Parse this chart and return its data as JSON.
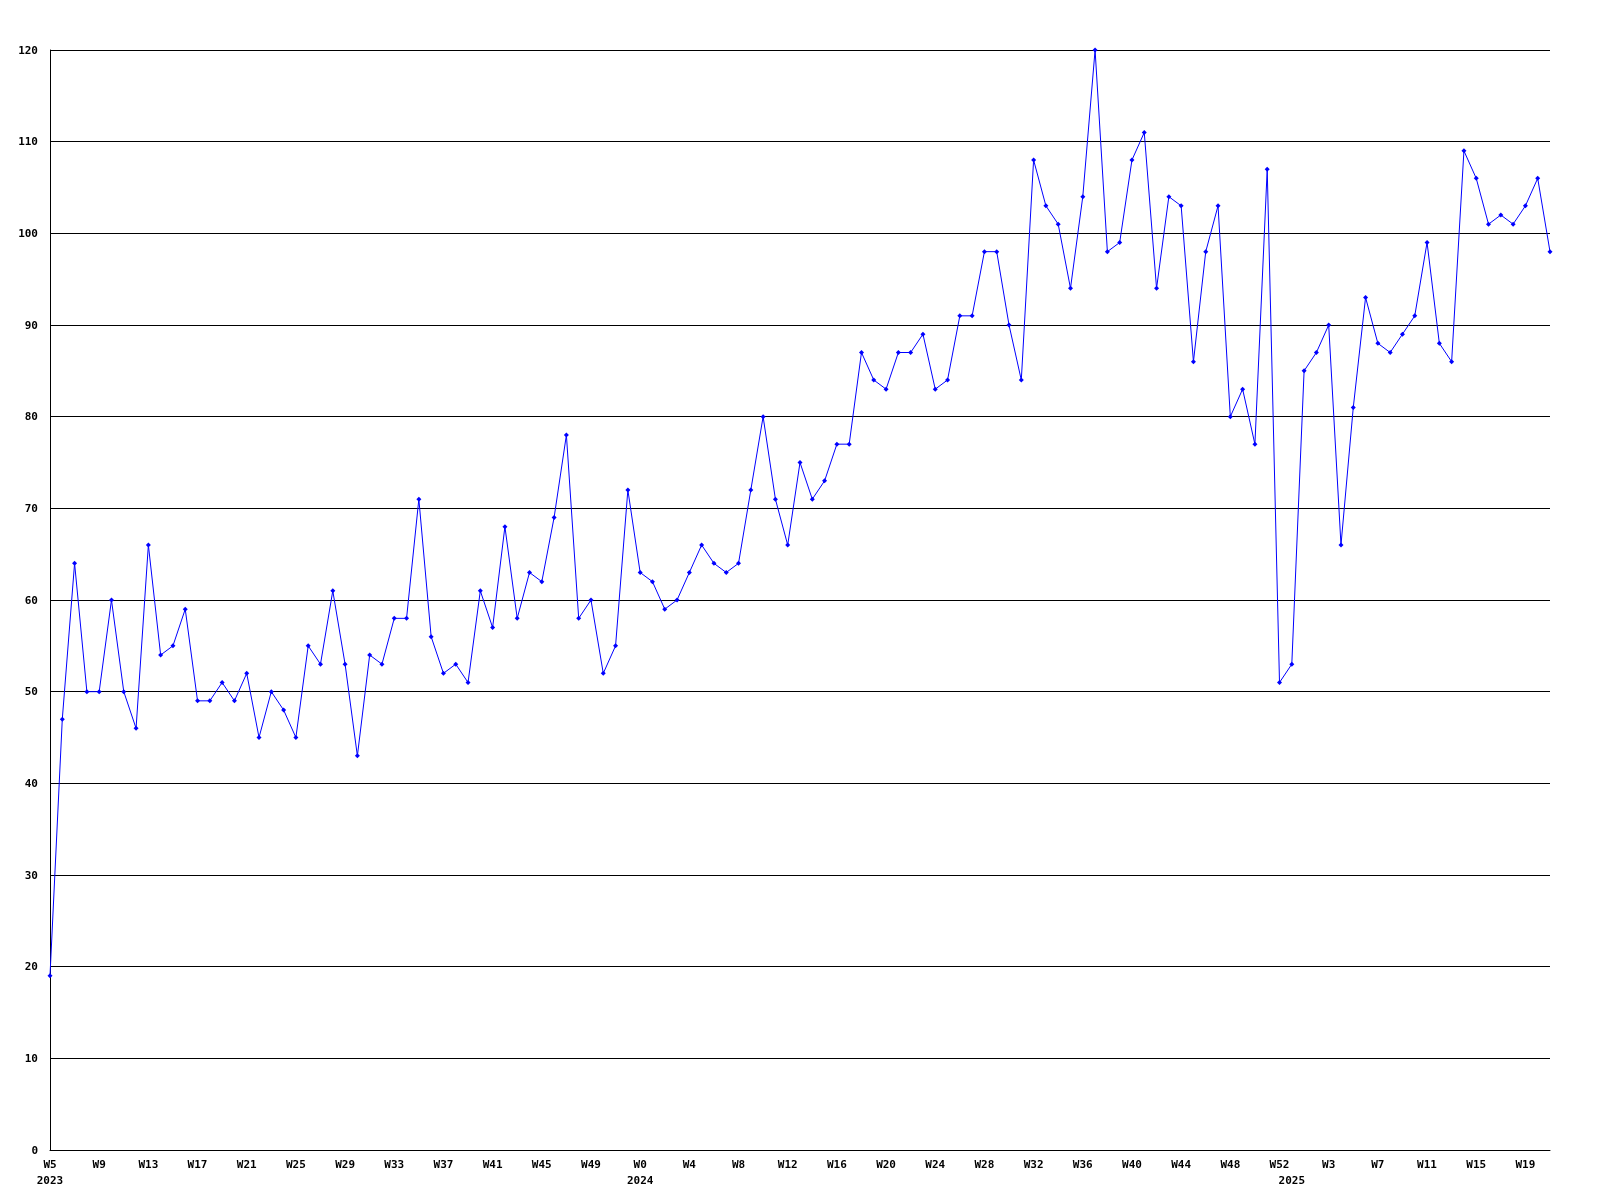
{
  "chart_data": {
    "type": "line",
    "categories": [
      "W5\n2023",
      null,
      null,
      null,
      "W9",
      null,
      null,
      null,
      "W13",
      null,
      null,
      null,
      "W17",
      null,
      null,
      null,
      "W21",
      null,
      null,
      null,
      "W25",
      null,
      null,
      null,
      "W29",
      null,
      null,
      null,
      "W33",
      null,
      null,
      null,
      "W37",
      null,
      null,
      null,
      "W41",
      null,
      null,
      null,
      "W45",
      null,
      null,
      null,
      "W49",
      null,
      null,
      null,
      "W0\n2024",
      null,
      null,
      null,
      "W4",
      null,
      null,
      null,
      "W8",
      null,
      null,
      null,
      "W12",
      null,
      null,
      null,
      "W16",
      null,
      null,
      null,
      "W20",
      null,
      null,
      null,
      "W24",
      null,
      null,
      null,
      "W28",
      null,
      null,
      null,
      "W32",
      null,
      null,
      null,
      "W36",
      null,
      null,
      null,
      "W40",
      null,
      null,
      null,
      "W44",
      null,
      null,
      null,
      "W48",
      null,
      null,
      null,
      "W52",
      "\n2025",
      null,
      null,
      "W3",
      null,
      null,
      null,
      "W7",
      null,
      null,
      null,
      "W11",
      null,
      null,
      null,
      "W15",
      null,
      null,
      null,
      "W19",
      null,
      null
    ],
    "series": [
      {
        "color": "#0000ff",
        "values": [
          19,
          47,
          64,
          50,
          50,
          60,
          50,
          46,
          66,
          54,
          55,
          59,
          49,
          49,
          51,
          49,
          52,
          45,
          50,
          48,
          45,
          55,
          53,
          61,
          53,
          43,
          54,
          53,
          58,
          58,
          71,
          56,
          52,
          53,
          51,
          61,
          57,
          68,
          58,
          63,
          62,
          69,
          78,
          58,
          60,
          52,
          55,
          72,
          63,
          62,
          59,
          60,
          63,
          66,
          64,
          63,
          64,
          72,
          80,
          71,
          66,
          75,
          71,
          73,
          77,
          77,
          87,
          84,
          83,
          87,
          87,
          89,
          83,
          84,
          91,
          91,
          98,
          98,
          90,
          84,
          108,
          103,
          101,
          94,
          104,
          120,
          98,
          99,
          108,
          111,
          94,
          104,
          103,
          86,
          98,
          103,
          80,
          83,
          77,
          107,
          51,
          53,
          85,
          87,
          90,
          66,
          81,
          93,
          88,
          87,
          89,
          91,
          99,
          88,
          86,
          109,
          106,
          101,
          102,
          101,
          103,
          106,
          98
        ]
      }
    ],
    "ylim": [
      0,
      120
    ],
    "yticks": [
      0,
      10,
      20,
      30,
      40,
      50,
      60,
      70,
      80,
      90,
      100,
      110,
      120
    ],
    "grid": "y",
    "marker": "diamond",
    "line_style": "solid"
  }
}
